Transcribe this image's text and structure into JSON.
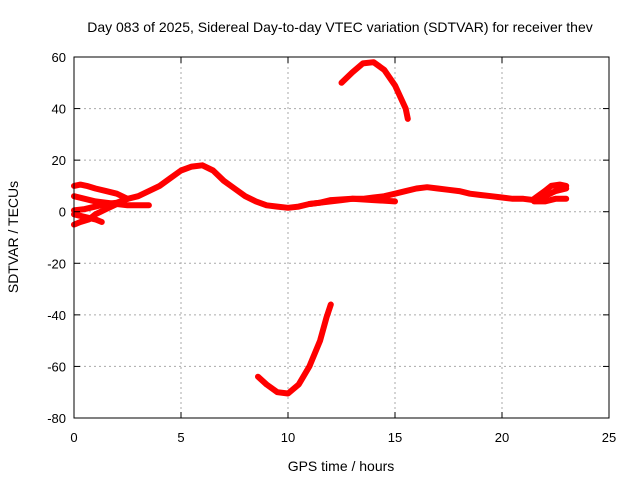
{
  "chart_data": {
    "type": "line",
    "title": "Day 083 of 2025, Sidereal Day-to-day VTEC variation (SDTVAR) for receiver thev",
    "xlabel": "GPS time / hours",
    "ylabel": "SDTVAR / TECUs",
    "xlim": [
      0,
      25
    ],
    "ylim": [
      -80,
      60
    ],
    "x_ticks": [
      0,
      5,
      10,
      15,
      20,
      25
    ],
    "y_ticks": [
      -80,
      -60,
      -40,
      -20,
      0,
      20,
      40,
      60
    ],
    "grid": true,
    "series_color": "#ff0000",
    "series": [
      {
        "name": "main-trace",
        "points": [
          [
            0,
            0.5
          ],
          [
            0.5,
            1
          ],
          [
            1,
            2
          ],
          [
            1.5,
            3
          ],
          [
            2,
            3.5
          ],
          [
            2.5,
            5
          ],
          [
            3,
            6
          ],
          [
            3.5,
            8
          ],
          [
            4,
            10
          ],
          [
            4.5,
            13
          ],
          [
            5,
            16
          ],
          [
            5.5,
            17.5
          ],
          [
            6,
            18
          ],
          [
            6.5,
            16
          ],
          [
            7,
            12
          ],
          [
            7.5,
            9
          ],
          [
            8,
            6
          ],
          [
            8.5,
            4
          ],
          [
            9,
            2.5
          ],
          [
            9.5,
            2
          ],
          [
            10,
            1.5
          ],
          [
            10.5,
            2
          ],
          [
            11,
            3
          ],
          [
            11.5,
            3.5
          ],
          [
            12,
            4
          ],
          [
            12.5,
            4.5
          ],
          [
            13,
            5
          ],
          [
            13.5,
            5
          ],
          [
            14,
            5.5
          ],
          [
            14.5,
            6
          ],
          [
            15,
            7
          ],
          [
            15.5,
            8
          ],
          [
            16,
            9
          ],
          [
            16.5,
            9.5
          ],
          [
            17,
            9
          ],
          [
            17.5,
            8.5
          ],
          [
            18,
            8
          ],
          [
            18.5,
            7
          ],
          [
            19,
            6.5
          ],
          [
            19.5,
            6
          ],
          [
            20,
            5.5
          ],
          [
            20.5,
            5
          ],
          [
            21,
            5
          ],
          [
            21.5,
            4.5
          ],
          [
            22,
            6
          ],
          [
            22.5,
            8
          ],
          [
            23,
            9
          ]
        ]
      },
      {
        "name": "early-upper",
        "points": [
          [
            0,
            10
          ],
          [
            0.3,
            10.5
          ],
          [
            0.6,
            10
          ],
          [
            1,
            9
          ],
          [
            1.5,
            8
          ],
          [
            2,
            7
          ],
          [
            2.5,
            5
          ]
        ]
      },
      {
        "name": "early-mid",
        "points": [
          [
            0,
            6
          ],
          [
            0.5,
            5
          ],
          [
            1,
            4
          ],
          [
            1.5,
            3.5
          ],
          [
            2,
            3
          ],
          [
            2.5,
            2.5
          ],
          [
            3,
            2.5
          ],
          [
            3.5,
            2.5
          ]
        ]
      },
      {
        "name": "early-lower",
        "points": [
          [
            0,
            -5
          ],
          [
            0.3,
            -4
          ],
          [
            0.7,
            -3
          ],
          [
            1,
            -1
          ],
          [
            1.5,
            1
          ],
          [
            2,
            3
          ],
          [
            2.5,
            5
          ]
        ]
      },
      {
        "name": "early-lower-2",
        "points": [
          [
            0,
            -1
          ],
          [
            0.5,
            -2
          ],
          [
            1,
            -3
          ],
          [
            1.3,
            -4
          ]
        ]
      },
      {
        "name": "mid-flat",
        "points": [
          [
            11,
            3
          ],
          [
            11.5,
            3.5
          ],
          [
            12,
            4.5
          ],
          [
            13,
            5
          ],
          [
            14,
            4.5
          ],
          [
            15,
            4
          ]
        ]
      },
      {
        "name": "late-upper",
        "points": [
          [
            21.5,
            5
          ],
          [
            22,
            8
          ],
          [
            22.3,
            10
          ],
          [
            22.7,
            10.5
          ],
          [
            23,
            10
          ]
        ]
      },
      {
        "name": "late-lower",
        "points": [
          [
            21.5,
            4
          ],
          [
            22,
            4
          ],
          [
            22.5,
            5
          ],
          [
            23,
            5
          ]
        ]
      },
      {
        "name": "high-arc",
        "points": [
          [
            12.5,
            50
          ],
          [
            13,
            54
          ],
          [
            13.5,
            57.5
          ],
          [
            14,
            58
          ],
          [
            14.5,
            55
          ],
          [
            15,
            49
          ],
          [
            15.5,
            40
          ],
          [
            15.6,
            36
          ]
        ]
      },
      {
        "name": "low-arc",
        "points": [
          [
            8.6,
            -64
          ],
          [
            9,
            -67
          ],
          [
            9.5,
            -70
          ],
          [
            10,
            -70.5
          ],
          [
            10.5,
            -67
          ],
          [
            11,
            -60
          ],
          [
            11.5,
            -50
          ],
          [
            11.8,
            -41
          ],
          [
            12,
            -36
          ]
        ]
      }
    ]
  }
}
